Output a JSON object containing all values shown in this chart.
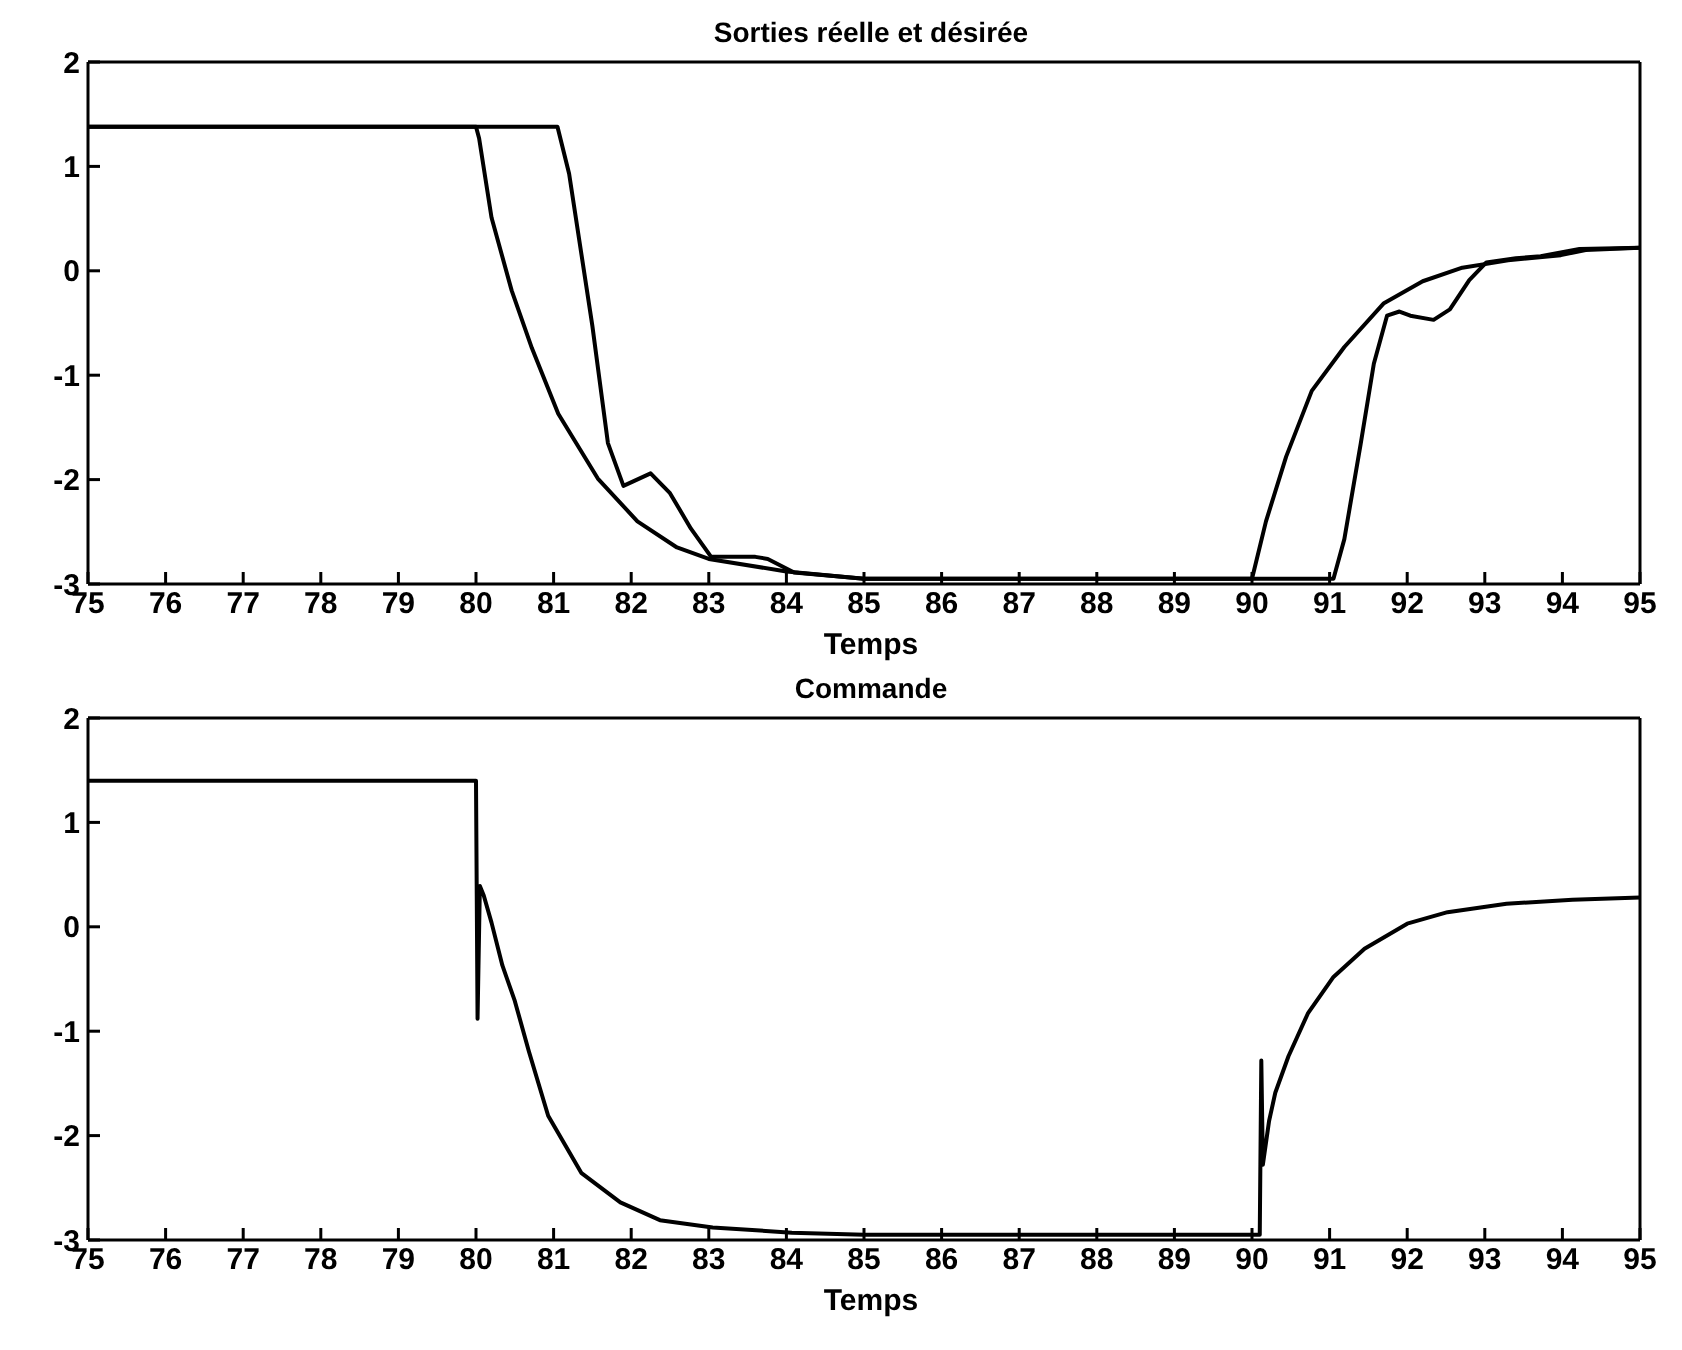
{
  "chart_data": [
    {
      "type": "line",
      "title": "Sorties réelle et désirée",
      "xlabel": "Temps",
      "xlim": [
        75,
        95
      ],
      "xticks": [
        75,
        76,
        77,
        78,
        79,
        80,
        81,
        82,
        83,
        84,
        85,
        86,
        87,
        88,
        89,
        90,
        91,
        92,
        93,
        94,
        95
      ],
      "ylim": [
        -3,
        2
      ],
      "yticks": [
        -3,
        -2,
        -1,
        0,
        1,
        2
      ],
      "marker": "none",
      "line_style": "solid",
      "series": [
        {
          "color": "#000000",
          "x": [
            75,
            80,
            80.04,
            80.2,
            80.46,
            80.72,
            81.06,
            81.57,
            82.08,
            82.59,
            83,
            84,
            85,
            90,
            90.18,
            90.44,
            90.77,
            91.19,
            91.7,
            92.2,
            92.71,
            93.3,
            93.98,
            94.3,
            95
          ],
          "values": [
            1.38,
            1.38,
            1.27,
            0.51,
            -0.19,
            -0.74,
            -1.37,
            -1.99,
            -2.4,
            -2.65,
            -2.76,
            -2.88,
            -2.95,
            -2.95,
            -2.4,
            -1.78,
            -1.15,
            -0.73,
            -0.31,
            -0.1,
            0.03,
            0.1,
            0.15,
            0.2,
            0.22
          ]
        },
        {
          "color": "#000000",
          "x": [
            75,
            81.05,
            81.2,
            81.5,
            81.7,
            81.9,
            82.25,
            82.5,
            82.77,
            83.03,
            83.6,
            83.76,
            84.1,
            85,
            91.05,
            91.19,
            91.4,
            91.57,
            91.74,
            91.9,
            92.04,
            92.34,
            92.55,
            92.8,
            93.02,
            93.4,
            93.72,
            94.22,
            95
          ],
          "values": [
            1.38,
            1.38,
            0.93,
            -0.53,
            -1.65,
            -2.06,
            -1.94,
            -2.13,
            -2.47,
            -2.74,
            -2.74,
            -2.76,
            -2.89,
            -2.95,
            -2.95,
            -2.57,
            -1.66,
            -0.89,
            -0.43,
            -0.39,
            -0.43,
            -0.47,
            -0.37,
            -0.09,
            0.08,
            0.12,
            0.14,
            0.21,
            0.22
          ]
        }
      ]
    },
    {
      "type": "line",
      "title": "Commande",
      "xlabel": "Temps",
      "xlim": [
        75,
        95
      ],
      "xticks": [
        75,
        76,
        77,
        78,
        79,
        80,
        81,
        82,
        83,
        84,
        85,
        86,
        87,
        88,
        89,
        90,
        91,
        92,
        93,
        94,
        95
      ],
      "ylim": [
        -3,
        2
      ],
      "yticks": [
        -3,
        -2,
        -1,
        0,
        1,
        2
      ],
      "marker": "none",
      "line_style": "solid",
      "series": [
        {
          "color": "#000000",
          "x": [
            75,
            80,
            80.02,
            80.05,
            80.1,
            80.2,
            80.34,
            80.5,
            80.68,
            80.93,
            81.36,
            81.86,
            82.37,
            83.05,
            84.07,
            85,
            90.1,
            90.12,
            90.14,
            90.22,
            90.3,
            90.47,
            90.72,
            91.05,
            91.45,
            92,
            92.52,
            93.28,
            94.13,
            95
          ],
          "values": [
            1.4,
            1.4,
            -0.88,
            0.39,
            0.3,
            0.04,
            -0.37,
            -0.71,
            -1.19,
            -1.81,
            -2.36,
            -2.64,
            -2.81,
            -2.88,
            -2.93,
            -2.95,
            -2.95,
            -1.28,
            -2.28,
            -1.86,
            -1.59,
            -1.24,
            -0.83,
            -0.48,
            -0.21,
            0.03,
            0.14,
            0.22,
            0.26,
            0.28
          ]
        }
      ]
    }
  ]
}
